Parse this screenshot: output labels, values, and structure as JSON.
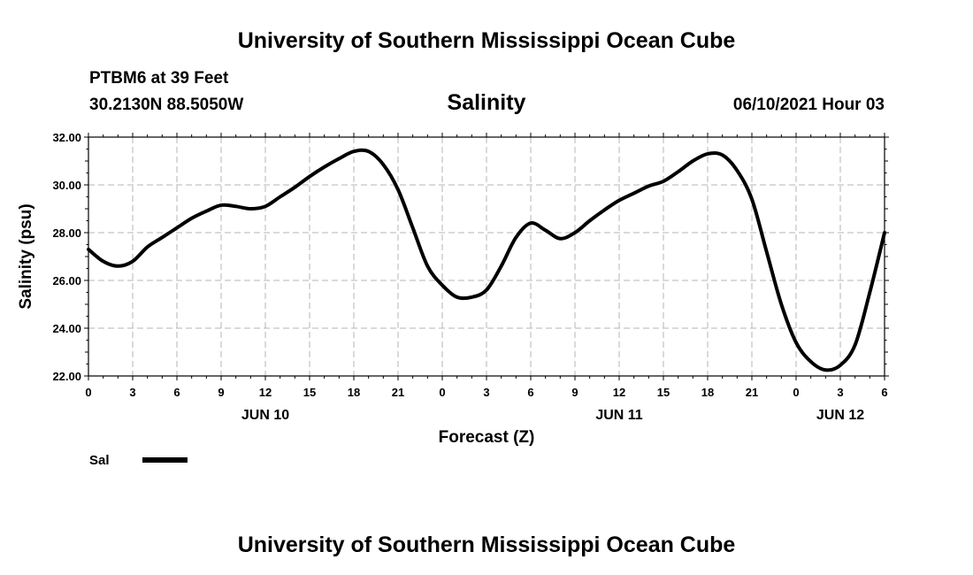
{
  "chart_data": {
    "type": "line",
    "header": "University of Southern Mississippi Ocean Cube",
    "footer": "University of Southern Mississippi Ocean Cube",
    "station": "PTBM6 at 39 Feet",
    "coords": "30.2130N  88.5050W",
    "title": "Salinity",
    "timestamp": "06/10/2021 Hour 03",
    "xlabel": "Forecast (Z)",
    "ylabel": "Salinity (psu)",
    "ylim": [
      22,
      32
    ],
    "xlim": [
      0,
      54
    ],
    "yticks": [
      "22.00",
      "24.00",
      "26.00",
      "28.00",
      "30.00",
      "32.00"
    ],
    "xticks": [
      "0",
      "3",
      "6",
      "9",
      "12",
      "15",
      "18",
      "21",
      "0",
      "3",
      "6",
      "9",
      "12",
      "15",
      "18",
      "21",
      "0",
      "3",
      "6"
    ],
    "day_labels": [
      {
        "label": "JUN 10",
        "hour": 12
      },
      {
        "label": "JUN 11",
        "hour": 36
      },
      {
        "label": "JUN 12",
        "hour": 51
      }
    ],
    "grid": true,
    "legend": [
      {
        "name": "Sal",
        "color": "#000000"
      }
    ],
    "series": [
      {
        "name": "Sal",
        "color": "#000000",
        "x": [
          0,
          1,
          2,
          3,
          4,
          5,
          6,
          7,
          8,
          9,
          10,
          11,
          12,
          13,
          14,
          15,
          16,
          17,
          18,
          19,
          20,
          21,
          22,
          23,
          24,
          25,
          26,
          27,
          28,
          29,
          30,
          31,
          32,
          33,
          34,
          35,
          36,
          37,
          38,
          39,
          40,
          41,
          42,
          43,
          44,
          45,
          46,
          47,
          48,
          49,
          50,
          51,
          52,
          53,
          54
        ],
        "values": [
          27.3,
          26.8,
          26.6,
          26.8,
          27.4,
          27.8,
          28.2,
          28.6,
          28.9,
          29.15,
          29.1,
          29.0,
          29.1,
          29.5,
          29.9,
          30.35,
          30.75,
          31.1,
          31.4,
          31.4,
          30.85,
          29.8,
          28.2,
          26.6,
          25.8,
          25.3,
          25.3,
          25.6,
          26.6,
          27.8,
          28.4,
          28.1,
          27.75,
          28.0,
          28.5,
          28.95,
          29.35,
          29.65,
          29.95,
          30.15,
          30.55,
          31.0,
          31.3,
          31.25,
          30.6,
          29.4,
          27.2,
          25.0,
          23.4,
          22.6,
          22.25,
          22.45,
          23.3,
          25.5,
          28.0
        ]
      }
    ]
  }
}
